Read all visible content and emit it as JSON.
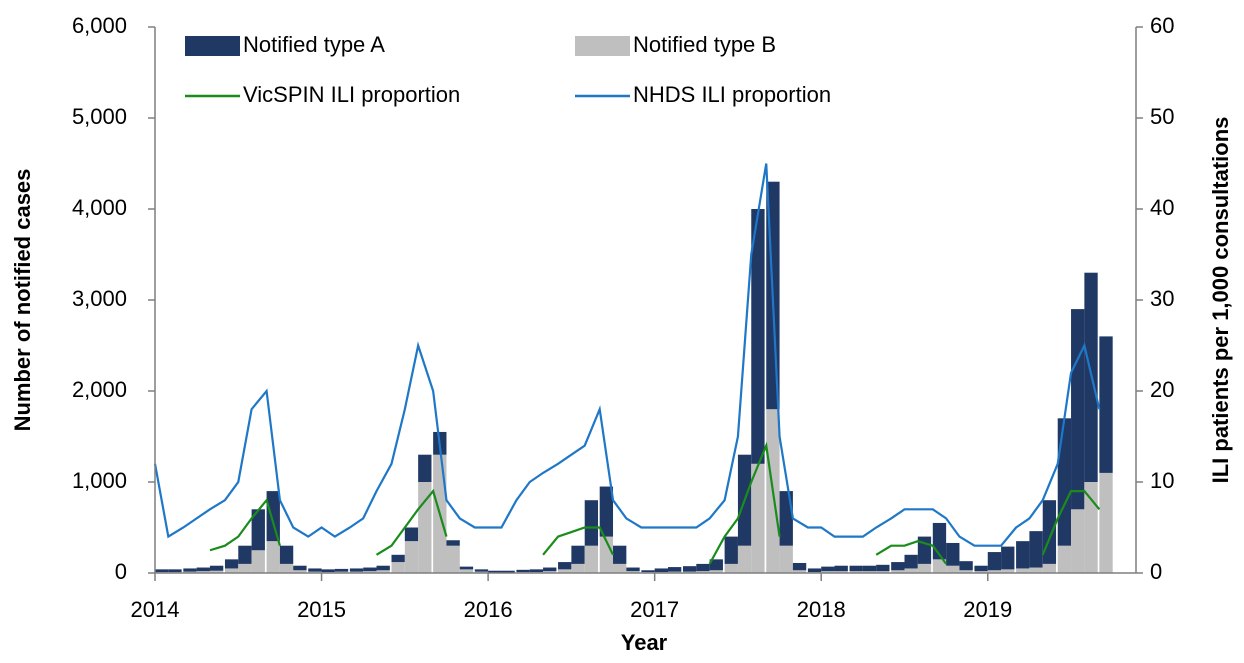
{
  "chart_data": {
    "type": "bar-line",
    "x_label": "Year",
    "y_label": "Number of notified cases",
    "y2_label": "ILI patients per 1,000 consultations",
    "legend": "top",
    "x": [
      2014,
      2014.08,
      2014.17,
      2014.25,
      2014.33,
      2014.42,
      2014.5,
      2014.58,
      2014.67,
      2014.75,
      2014.83,
      2014.92,
      2015,
      2015.08,
      2015.17,
      2015.25,
      2015.33,
      2015.42,
      2015.5,
      2015.58,
      2015.67,
      2015.75,
      2015.83,
      2015.92,
      2016,
      2016.08,
      2016.17,
      2016.25,
      2016.33,
      2016.42,
      2016.5,
      2016.58,
      2016.67,
      2016.75,
      2016.83,
      2016.92,
      2017,
      2017.08,
      2017.17,
      2017.25,
      2017.33,
      2017.42,
      2017.5,
      2017.58,
      2017.67,
      2017.75,
      2017.83,
      2017.92,
      2018,
      2018.08,
      2018.17,
      2018.25,
      2018.33,
      2018.42,
      2018.5,
      2018.58,
      2018.67,
      2018.75,
      2018.83,
      2018.92,
      2019,
      2019.08,
      2019.17,
      2019.25,
      2019.33,
      2019.42,
      2019.5,
      2019.58,
      2019.67
    ],
    "xlim": [
      2014,
      2019.89
    ],
    "xticks": [
      2014,
      2015,
      2016,
      2017,
      2018,
      2019
    ],
    "ylim": [
      0,
      6000
    ],
    "yticks": [
      0,
      {
        "value": 1000,
        "label": "1,000"
      },
      {
        "value": 2000,
        "label": "2,000"
      },
      {
        "value": 3000,
        "label": "3,000"
      },
      {
        "value": 4000,
        "label": "4,000"
      },
      {
        "value": 5000,
        "label": "5,000"
      },
      {
        "value": 6000,
        "label": "6,000"
      }
    ],
    "y2lim": [
      0,
      60
    ],
    "y2ticks": [
      0,
      10,
      20,
      30,
      40,
      50,
      60
    ],
    "series": [
      {
        "name": "Notified type B",
        "type": "bar",
        "color": "#bfbfbf",
        "values": [
          10,
          10,
          15,
          20,
          25,
          50,
          100,
          250,
          350,
          100,
          30,
          15,
          10,
          15,
          15,
          20,
          30,
          120,
          350,
          1000,
          1300,
          300,
          40,
          15,
          5,
          5,
          10,
          10,
          20,
          40,
          100,
          300,
          400,
          100,
          20,
          10,
          10,
          15,
          15,
          20,
          30,
          100,
          300,
          1200,
          1800,
          300,
          30,
          10,
          20,
          20,
          20,
          20,
          20,
          30,
          50,
          100,
          150,
          80,
          30,
          20,
          30,
          40,
          50,
          60,
          100,
          300,
          700,
          1000,
          1100
        ]
      },
      {
        "name": "Notified type A",
        "type": "bar",
        "color": "#1f3864",
        "values": [
          30,
          30,
          35,
          40,
          55,
          100,
          200,
          450,
          550,
          200,
          50,
          35,
          30,
          30,
          35,
          40,
          50,
          80,
          150,
          300,
          250,
          60,
          30,
          25,
          20,
          20,
          25,
          30,
          40,
          80,
          200,
          500,
          550,
          200,
          40,
          20,
          40,
          50,
          60,
          80,
          120,
          300,
          1000,
          2800,
          2500,
          600,
          80,
          40,
          50,
          60,
          60,
          60,
          70,
          90,
          150,
          300,
          400,
          250,
          100,
          60,
          200,
          250,
          300,
          400,
          700,
          1400,
          2200,
          2300,
          1500
        ]
      },
      {
        "name": "VicSPIN ILI proportion",
        "type": "line",
        "axis": "y2",
        "color": "#1a8c1a",
        "values": [
          null,
          null,
          null,
          null,
          2.5,
          3,
          4,
          6,
          8,
          3,
          null,
          null,
          null,
          null,
          null,
          null,
          2,
          3,
          5,
          7,
          9,
          4,
          null,
          null,
          null,
          null,
          null,
          null,
          2,
          4,
          4.5,
          5,
          5,
          2,
          null,
          null,
          null,
          null,
          null,
          null,
          1,
          4,
          6,
          10,
          14,
          4,
          null,
          null,
          null,
          null,
          null,
          null,
          2,
          3,
          3,
          3.5,
          3,
          1,
          null,
          null,
          null,
          null,
          null,
          null,
          2,
          6,
          9,
          9,
          7
        ]
      },
      {
        "name": "NHDS ILI proportion",
        "type": "line",
        "axis": "y2",
        "color": "#1f77c8",
        "values": [
          12,
          4,
          5,
          6,
          7,
          8,
          10,
          18,
          20,
          8,
          5,
          4,
          5,
          4,
          5,
          6,
          9,
          12,
          18,
          25,
          20,
          8,
          6,
          5,
          5,
          5,
          8,
          10,
          11,
          12,
          13,
          14,
          18,
          8,
          6,
          5,
          5,
          5,
          5,
          5,
          6,
          8,
          15,
          35,
          45,
          15,
          6,
          5,
          5,
          4,
          4,
          4,
          5,
          6,
          7,
          7,
          7,
          6,
          4,
          3,
          3,
          3,
          5,
          6,
          8,
          12,
          22,
          25,
          18
        ]
      }
    ]
  }
}
